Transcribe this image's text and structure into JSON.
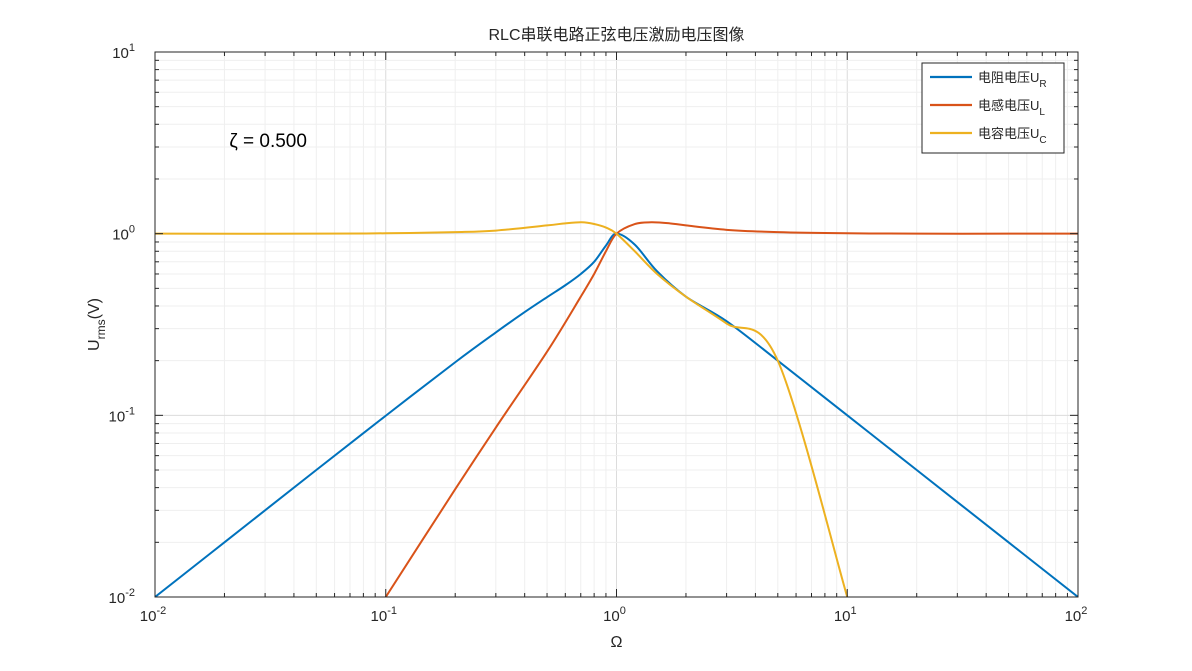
{
  "chart_data": {
    "type": "line",
    "title": "RLC串联电路正弦电压激励电压图像",
    "xlabel": {
      "base": "Ω",
      "sub": ""
    },
    "ylabel": {
      "base": "U",
      "sub": "rms",
      "suffix": "(V)"
    },
    "xscale": "log",
    "yscale": "log",
    "xlim": [
      0.01,
      100
    ],
    "ylim": [
      0.01,
      10
    ],
    "grid": true,
    "legend_position": "top-right",
    "x_ticks": [
      {
        "value": 0.01,
        "base": "10",
        "exp": "-2"
      },
      {
        "value": 0.1,
        "base": "10",
        "exp": "-1"
      },
      {
        "value": 1,
        "base": "10",
        "exp": "0"
      },
      {
        "value": 10,
        "base": "10",
        "exp": "1"
      },
      {
        "value": 100,
        "base": "10",
        "exp": "2"
      }
    ],
    "y_ticks": [
      {
        "value": 0.01,
        "base": "10",
        "exp": "-2"
      },
      {
        "value": 0.1,
        "base": "10",
        "exp": "-1"
      },
      {
        "value": 1,
        "base": "10",
        "exp": "0"
      },
      {
        "value": 10,
        "base": "10",
        "exp": "1"
      }
    ],
    "series": [
      {
        "name": "电阻电压U",
        "sub": "R",
        "color": "#0072BD",
        "x": [
          0.01,
          0.02,
          0.05,
          0.1,
          0.2,
          0.3,
          0.4,
          0.5,
          0.6,
          0.7,
          0.8,
          0.9,
          1.0,
          1.2,
          1.5,
          2.0,
          3.0,
          5.0,
          10,
          20,
          50,
          100
        ],
        "y": [
          0.01,
          0.02,
          0.05,
          0.0995,
          0.196,
          0.286,
          0.37,
          0.447,
          0.52,
          0.6,
          0.7,
          0.86,
          1.0,
          0.87,
          0.62,
          0.45,
          0.33,
          0.2,
          0.1,
          0.05,
          0.02,
          0.01
        ]
      },
      {
        "name": "电感电压U",
        "sub": "L",
        "color": "#D95319",
        "x": [
          0.1,
          0.2,
          0.3,
          0.5,
          0.7,
          0.8,
          0.9,
          1.0,
          1.2,
          1.414,
          1.7,
          2.0,
          3.0,
          5.0,
          10,
          20,
          50,
          100
        ],
        "y": [
          0.01,
          0.0392,
          0.0857,
          0.224,
          0.45,
          0.6,
          0.8,
          1.0,
          1.13,
          1.155,
          1.14,
          1.11,
          1.05,
          1.02,
          1.005,
          1.0,
          1.0,
          1.0
        ]
      },
      {
        "name": "电容电压U",
        "sub": "C",
        "color": "#EDB120",
        "x": [
          0.01,
          0.05,
          0.1,
          0.2,
          0.3,
          0.5,
          0.6,
          0.707,
          0.8,
          0.9,
          1.0,
          1.2,
          1.5,
          2.0,
          3.0,
          5.0,
          10
        ],
        "y": [
          1.0,
          1.0,
          1.005,
          1.02,
          1.04,
          1.11,
          1.14,
          1.155,
          1.13,
          1.08,
          1.0,
          0.8,
          0.6,
          0.45,
          0.32,
          0.2,
          0.01
        ]
      }
    ],
    "annotations": [
      {
        "text": "ζ = 0.500",
        "x": 0.021,
        "y": 3.0
      }
    ]
  }
}
